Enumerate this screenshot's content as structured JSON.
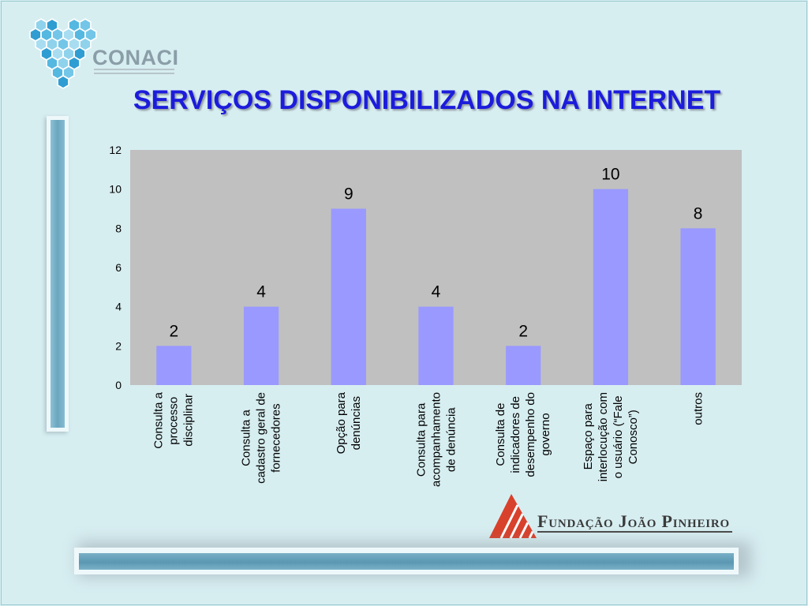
{
  "chart_data": {
    "type": "bar",
    "title": "SERVIÇOS DISPONIBILIZADOS NA INTERNET",
    "categories": [
      "Consulta a\nprocesso\ndisciplinar",
      "Consulta a\ncadastro geral de\nfornecedores",
      "Opção para\ndenúncias",
      "Consulta para\nacompanhamento\nde denúncia",
      "Consulta de\nindicadores de\ndesempenho do\ngoverno",
      "Espaço para\ninterlocução com\no usuário (“Fale\nConosco”)",
      "outros"
    ],
    "values": [
      2,
      4,
      9,
      4,
      2,
      10,
      8
    ],
    "ylim": [
      0,
      12
    ],
    "yticks": [
      0,
      2,
      4,
      6,
      8,
      10,
      12
    ],
    "data_labels": true,
    "grid": false,
    "legend": false,
    "colors": {
      "bar": "#9999ff",
      "plot_background": "#c0c0c0",
      "title": "#1c1cdc"
    }
  },
  "logos": {
    "conaci": {
      "text": "CONACI",
      "icon": "hexagon-cluster-icon",
      "text_color": "#8a9ea8"
    },
    "fjp": {
      "text": "Fundação João Pinheiro",
      "icon": "fjp-triangle-icon",
      "icon_color": "#d8412b"
    }
  },
  "theme": {
    "background": "#d7eef1"
  }
}
